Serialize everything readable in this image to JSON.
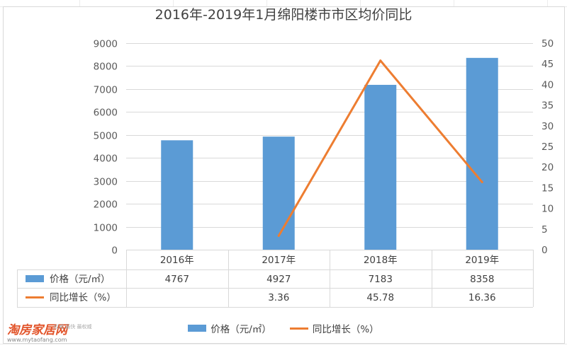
{
  "chart_data": {
    "type": "bar+line",
    "title": "2016年-2019年1月绵阳楼市市区均价同比",
    "categories": [
      "2016年",
      "2017年",
      "2018年",
      "2019年"
    ],
    "series": [
      {
        "name": "价格（元/㎡）",
        "type": "bar",
        "axis": "left",
        "values": [
          4767,
          4927,
          7183,
          8358
        ],
        "labels": [
          "4767",
          "4927",
          "7183",
          "8358"
        ],
        "color": "#5B9BD5"
      },
      {
        "name": "同比增长（%）",
        "type": "line",
        "axis": "right",
        "values": [
          null,
          3.36,
          45.78,
          16.36
        ],
        "labels": [
          "",
          "3.36",
          "45.78",
          "16.36"
        ],
        "color": "#ED7D31"
      }
    ],
    "y_left": {
      "min": 0,
      "max": 9000,
      "step": 1000,
      "ticks": [
        "0",
        "1000",
        "2000",
        "3000",
        "4000",
        "5000",
        "6000",
        "7000",
        "8000",
        "9000"
      ]
    },
    "y_right": {
      "min": 0,
      "max": 50,
      "step": 5,
      "ticks": [
        "0",
        "5",
        "10",
        "15",
        "20",
        "25",
        "30",
        "35",
        "40",
        "45",
        "50"
      ]
    },
    "grid": true,
    "legend": "bottom",
    "data_table": true
  },
  "watermark": {
    "logo": "淘房家居网",
    "url": "www.mytaofang.com",
    "slogan": "权威 最快 最权威"
  }
}
